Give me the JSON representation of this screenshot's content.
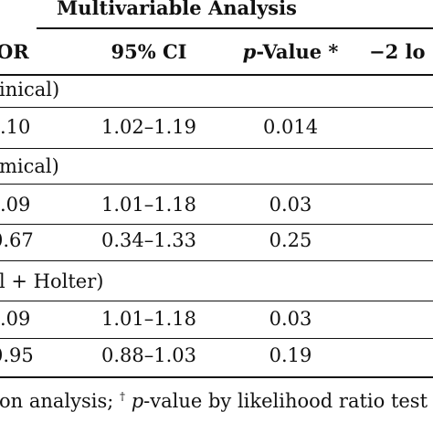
{
  "heading": "Multivariable Analysis",
  "columns": {
    "or": "OR",
    "ci": "95% CI",
    "p_prefix": "p",
    "p_suffix": "-Value *",
    "log": "−2 lo"
  },
  "sections": [
    {
      "label": "inical)"
    },
    {
      "label": "mical)"
    },
    {
      "label": "l + Holter)"
    }
  ],
  "rows": [
    {
      "or": ".10",
      "ci": "1.02–1.19",
      "p": "0.014"
    },
    {
      "or": ".09",
      "ci": "1.01–1.18",
      "p": "0.03"
    },
    {
      "or": "0.67",
      "ci": "0.34–1.33",
      "p": "0.25"
    },
    {
      "or": ".09",
      "ci": "1.01–1.18",
      "p": "0.03"
    },
    {
      "or": "0.95",
      "ci": "0.88–1.03",
      "p": "0.19"
    }
  ],
  "footnote": {
    "part1": "on analysis; ",
    "dagger": "†",
    "p": "p",
    "part2": "-value by likelihood ratio test vs. "
  }
}
